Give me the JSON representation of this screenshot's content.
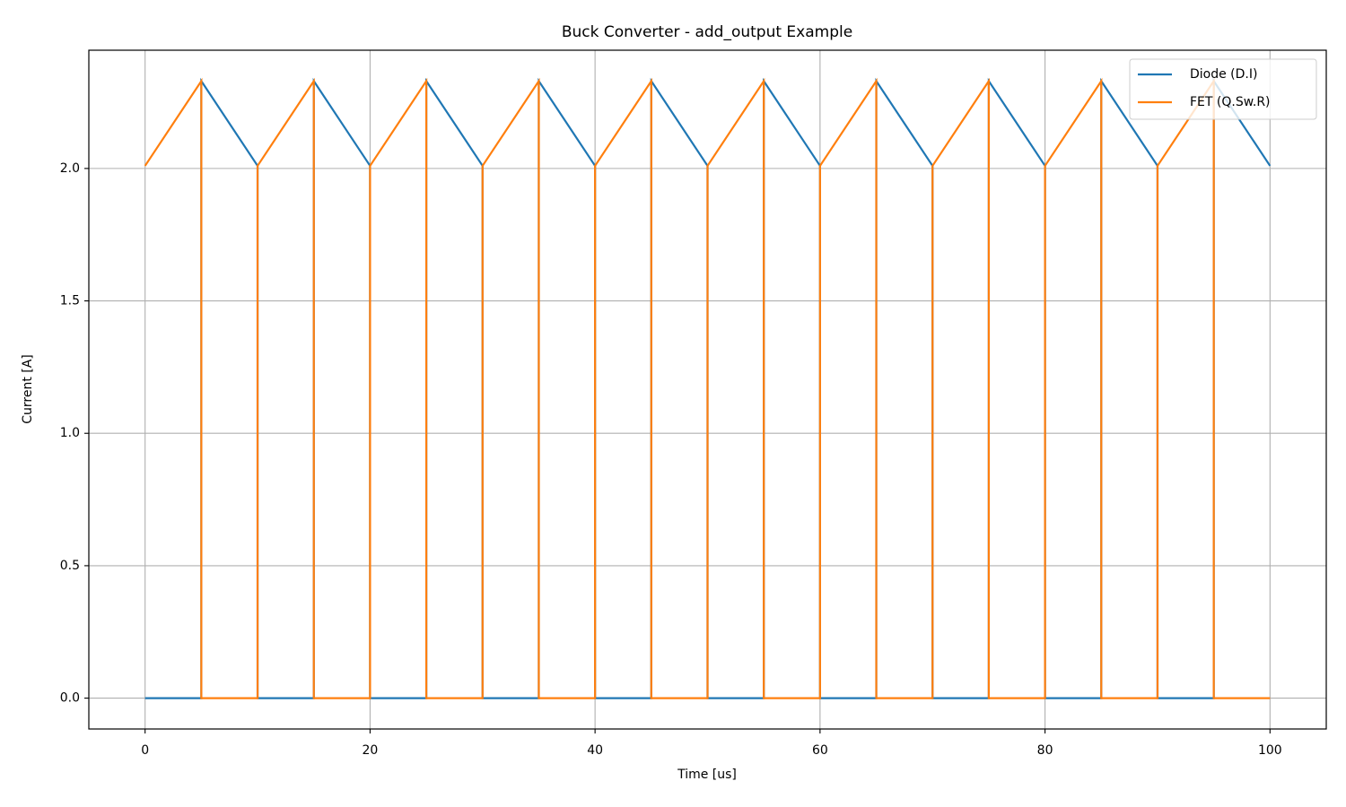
{
  "chart_data": {
    "type": "line",
    "title": "Buck Converter - add_output Example",
    "x_label": "Time [us]",
    "y_label": "Current [A]",
    "x": [
      0,
      5,
      5,
      10,
      10,
      15,
      15,
      20,
      20,
      25,
      25,
      30,
      30,
      35,
      35,
      40,
      40,
      45,
      45,
      50,
      50,
      55,
      55,
      60,
      60,
      65,
      65,
      70,
      70,
      75,
      75,
      80,
      80,
      85,
      85,
      90,
      90,
      95,
      95,
      100
    ],
    "series": [
      {
        "name": "Diode (D.I)",
        "color": "#1f77b4",
        "values": [
          0,
          0,
          2.33,
          2.01,
          0,
          0,
          2.33,
          2.01,
          0,
          0,
          2.33,
          2.01,
          0,
          0,
          2.33,
          2.01,
          0,
          0,
          2.33,
          2.01,
          0,
          0,
          2.33,
          2.01,
          0,
          0,
          2.33,
          2.01,
          0,
          0,
          2.33,
          2.01,
          0,
          0,
          2.33,
          2.01,
          0,
          0,
          2.33,
          2.01
        ]
      },
      {
        "name": "FET (Q.Sw.R)",
        "color": "#ff7f0e",
        "values": [
          2.01,
          2.33,
          0,
          0,
          2.01,
          2.33,
          0,
          0,
          2.01,
          2.33,
          0,
          0,
          2.01,
          2.33,
          0,
          0,
          2.01,
          2.33,
          0,
          0,
          2.01,
          2.33,
          0,
          0,
          2.01,
          2.33,
          0,
          0,
          2.01,
          2.33,
          0,
          0,
          2.01,
          2.33,
          0,
          0,
          2.01,
          2.33,
          0,
          0
        ]
      }
    ],
    "xlim": [
      -5,
      105
    ],
    "ylim": [
      -0.1165,
      2.4465
    ],
    "xticks": [
      0,
      20,
      40,
      60,
      80,
      100
    ],
    "yticks": [
      {
        "value": 0,
        "label": "0.0"
      },
      0.5,
      {
        "value": 1,
        "label": "1.0"
      },
      1.5,
      {
        "value": 2,
        "label": "2.0"
      }
    ],
    "grid": true,
    "legend": "upper right"
  }
}
